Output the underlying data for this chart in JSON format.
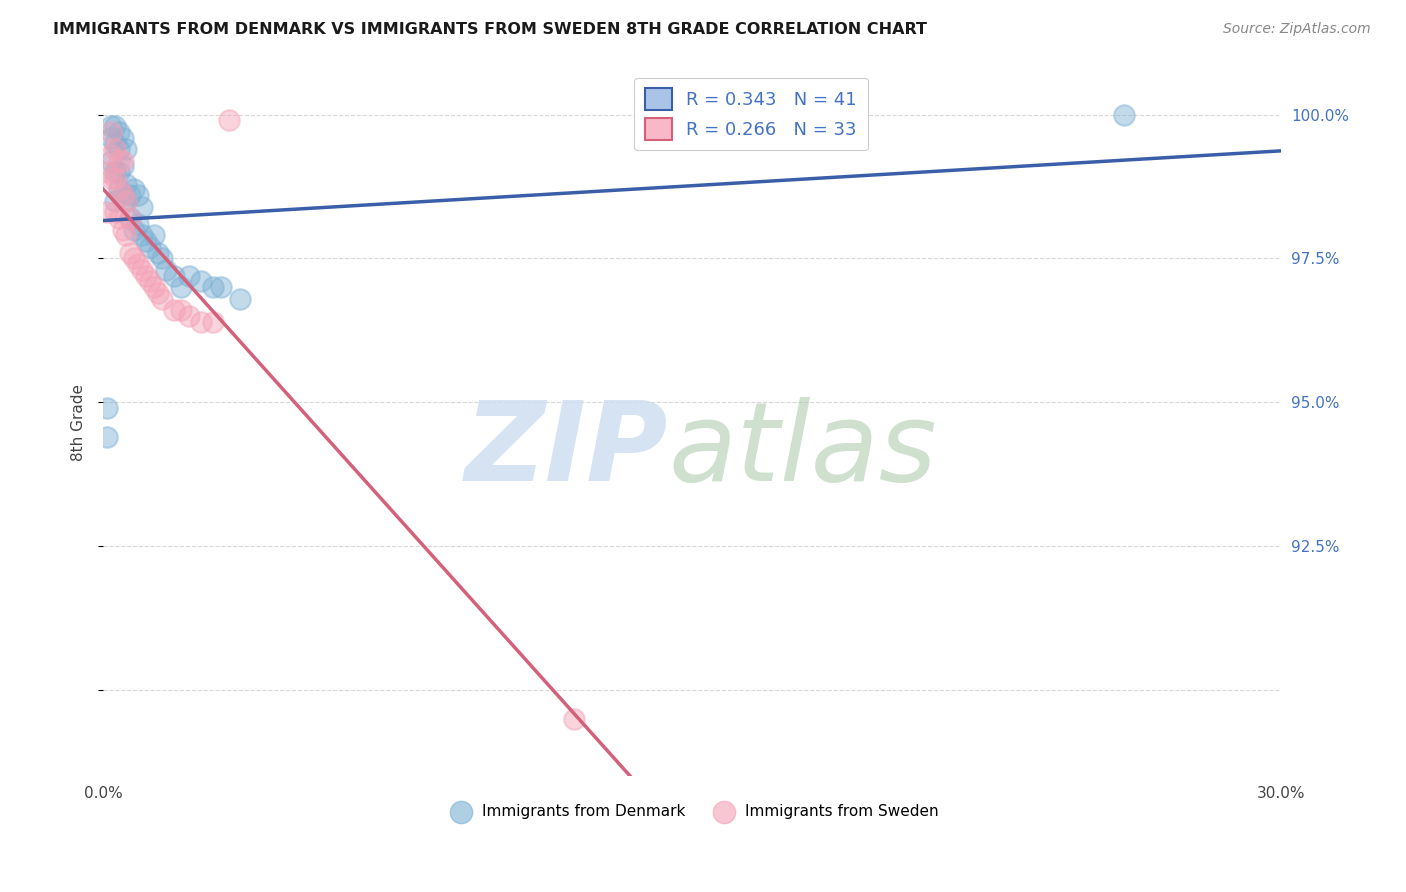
{
  "title": "IMMIGRANTS FROM DENMARK VS IMMIGRANTS FROM SWEDEN 8TH GRADE CORRELATION CHART",
  "source": "Source: ZipAtlas.com",
  "ylabel": "8th Grade",
  "xlim": [
    0.0,
    0.3
  ],
  "ylim": [
    0.885,
    1.008
  ],
  "x_ticks": [
    0.0,
    0.05,
    0.1,
    0.15,
    0.2,
    0.25,
    0.3
  ],
  "x_tick_labels": [
    "0.0%",
    "",
    "",
    "",
    "",
    "",
    "30.0%"
  ],
  "y_ticks": [
    0.9,
    0.925,
    0.95,
    0.975,
    1.0
  ],
  "y_tick_labels_right": [
    "",
    "92.5%",
    "95.0%",
    "97.5%",
    "100.0%"
  ],
  "denmark_color": "#7bafd4",
  "sweden_color": "#f4a0b5",
  "denmark_line_color": "#3a5fa8",
  "sweden_line_color": "#d4607a",
  "denmark_R": 0.343,
  "denmark_N": 41,
  "sweden_R": 0.266,
  "sweden_N": 33,
  "grid_color": "#d8d8d8",
  "background_color": "#ffffff",
  "denmark_x": [
    0.001,
    0.001,
    0.002,
    0.002,
    0.002,
    0.003,
    0.003,
    0.003,
    0.003,
    0.004,
    0.004,
    0.004,
    0.004,
    0.005,
    0.005,
    0.005,
    0.006,
    0.006,
    0.006,
    0.007,
    0.007,
    0.008,
    0.008,
    0.009,
    0.009,
    0.01,
    0.01,
    0.011,
    0.012,
    0.013,
    0.014,
    0.015,
    0.016,
    0.018,
    0.02,
    0.022,
    0.025,
    0.028,
    0.03,
    0.035,
    0.26
  ],
  "denmark_y": [
    0.949,
    0.944,
    0.992,
    0.996,
    0.998,
    0.985,
    0.99,
    0.995,
    0.998,
    0.987,
    0.99,
    0.994,
    0.997,
    0.986,
    0.991,
    0.996,
    0.985,
    0.988,
    0.994,
    0.982,
    0.986,
    0.98,
    0.987,
    0.981,
    0.986,
    0.979,
    0.984,
    0.978,
    0.977,
    0.979,
    0.976,
    0.975,
    0.973,
    0.972,
    0.97,
    0.972,
    0.971,
    0.97,
    0.97,
    0.968,
    1.0
  ],
  "sweden_x": [
    0.001,
    0.001,
    0.002,
    0.002,
    0.002,
    0.003,
    0.003,
    0.003,
    0.004,
    0.004,
    0.004,
    0.005,
    0.005,
    0.005,
    0.006,
    0.006,
    0.007,
    0.007,
    0.008,
    0.009,
    0.01,
    0.011,
    0.012,
    0.013,
    0.014,
    0.015,
    0.018,
    0.02,
    0.022,
    0.025,
    0.028,
    0.032,
    0.12
  ],
  "sweden_y": [
    0.99,
    0.983,
    0.989,
    0.993,
    0.997,
    0.983,
    0.989,
    0.994,
    0.982,
    0.987,
    0.992,
    0.98,
    0.986,
    0.992,
    0.979,
    0.985,
    0.976,
    0.982,
    0.975,
    0.974,
    0.973,
    0.972,
    0.971,
    0.97,
    0.969,
    0.968,
    0.966,
    0.966,
    0.965,
    0.964,
    0.964,
    0.999,
    0.895
  ]
}
